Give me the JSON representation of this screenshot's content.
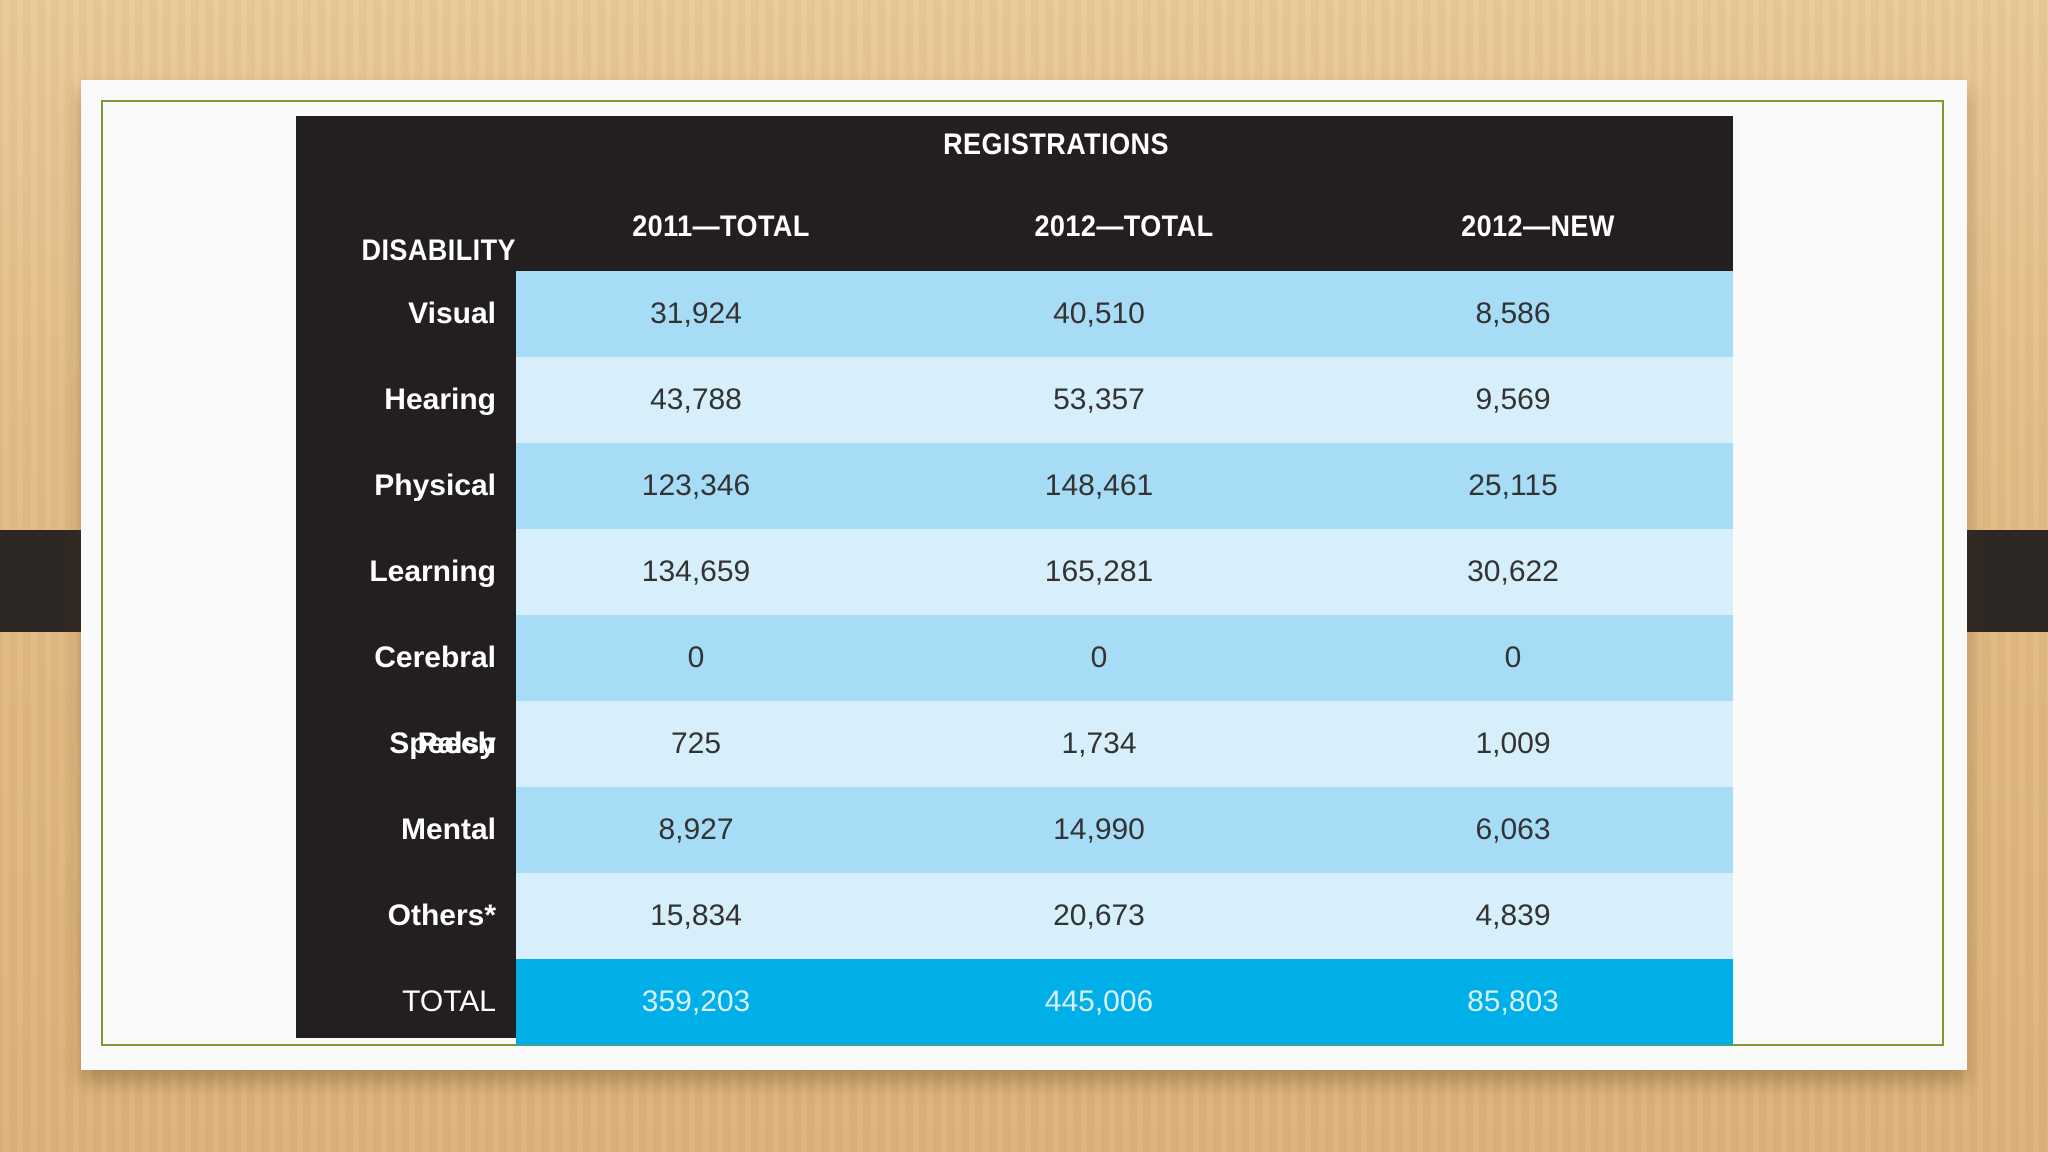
{
  "chart_data": {
    "type": "table",
    "title": "REGISTRATIONS",
    "row_header": "DISABILITY",
    "columns": [
      "2011—TOTAL",
      "2012—TOTAL",
      "2012—NEW"
    ],
    "rows": [
      {
        "label": "Visual",
        "values": [
          "31,924",
          "40,510",
          "8,586"
        ]
      },
      {
        "label": "Hearing",
        "values": [
          "43,788",
          "53,357",
          "9,569"
        ]
      },
      {
        "label": "Physical",
        "values": [
          "123,346",
          "148,461",
          "25,115"
        ]
      },
      {
        "label": "Learning",
        "values": [
          "134,659",
          "165,281",
          "30,622"
        ]
      },
      {
        "label": "Cerebral Palsy",
        "values": [
          "0",
          "0",
          "0"
        ]
      },
      {
        "label": "Speech",
        "values": [
          "725",
          "1,734",
          "1,009"
        ]
      },
      {
        "label": "Mental",
        "values": [
          "8,927",
          "14,990",
          "6,063"
        ]
      },
      {
        "label": "Others*",
        "values": [
          "15,834",
          "20,673",
          "4,839"
        ]
      }
    ],
    "total": {
      "label": "TOTAL",
      "values": [
        "359,203",
        "445,006",
        "85,803"
      ]
    }
  },
  "colors": {
    "header_bg": "#231f20",
    "row_dark": "#a6dcf6",
    "row_light": "#d6effb",
    "total_bg": "#00aee8"
  }
}
